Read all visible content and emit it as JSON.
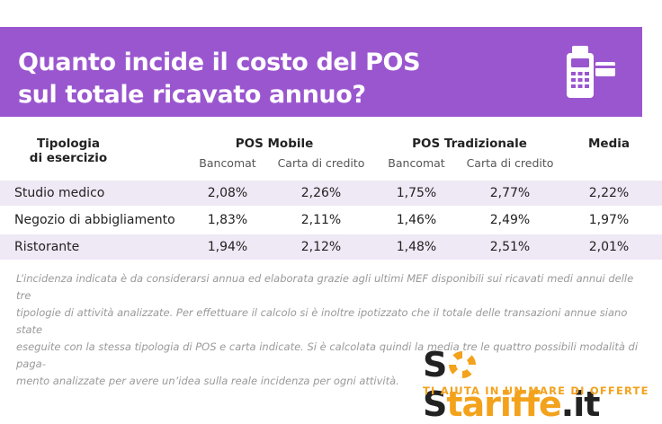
{
  "banner": {
    "title_line1": "Quanto incide il costo del POS",
    "title_line2": "sul totale ricavato annuo?",
    "icon": "pos-terminal-icon",
    "color": "#9a56cf"
  },
  "table": {
    "col_type_line1": "Tipologia",
    "col_type_line2": "di esercizio",
    "group_mobile": "POS Mobile",
    "group_traditional": "POS Tradizionale",
    "col_media": "Media",
    "sub_bancomat": "Bancomat",
    "sub_credit": "Carta di credito",
    "rows": [
      {
        "name": "Studio medico",
        "mob_banc": "2,08%",
        "mob_cred": "2,26%",
        "trad_banc": "1,75%",
        "trad_cred": "2,77%",
        "media": "2,22%"
      },
      {
        "name": "Negozio di abbigliamento",
        "mob_banc": "1,83%",
        "mob_cred": "2,11%",
        "trad_banc": "1,46%",
        "trad_cred": "2,49%",
        "media": "1,97%"
      },
      {
        "name": "Ristorante",
        "mob_banc": "1,94%",
        "mob_cred": "2,12%",
        "trad_banc": "1,48%",
        "trad_cred": "2,51%",
        "media": "2,01%"
      }
    ],
    "row_shade_color": "#efe8f5"
  },
  "note": {
    "line1": "L’incidenza indicata è da considerarsi annua ed elaborata grazie agli ultimi MEF disponibili sui ricavati medi annui delle tre",
    "line2": "tipologie di attività analizzate. Per effettuare il calcolo si è inoltre ipotizzato che il totale delle transazioni annue siano state",
    "line3": "eseguite con la stessa tipologia di POS e carta indicate. Si è calcolata quindi la media tre le quattro possibili modalità di paga-",
    "line4": "mento analizzate per avere un’idea sulla reale incidenza per ogni attività."
  },
  "logo": {
    "part1": "S",
    "part2": "S",
    "part3": "tariffe",
    "part4": ".it",
    "tagline": "TI AIUTA IN UN MARE DI OFFERTE",
    "icon": "lifebuoy-icon",
    "colors": {
      "dark": "#222222",
      "orange": "#f3a21c",
      "tagline": "#f3a21c"
    }
  }
}
